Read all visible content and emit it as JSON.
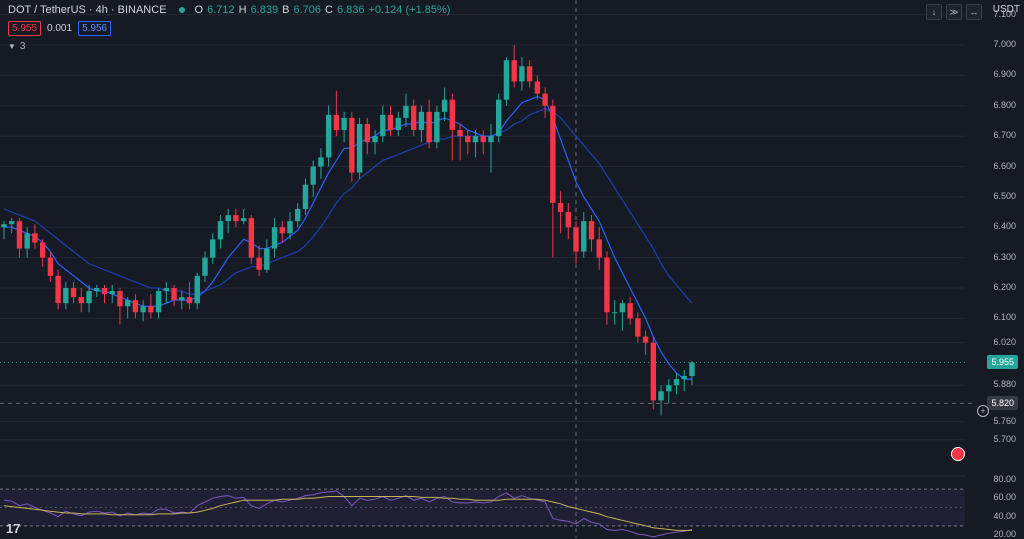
{
  "header": {
    "symbol": "DOT / TetherUS · 4h · BINANCE",
    "o_label": "O",
    "o_value": "6.712",
    "h_label": "H",
    "h_value": "6.839",
    "l_label": "B",
    "l_value": "6.706",
    "c_label": "C",
    "c_value": "6.836",
    "change": "+0.124 (+1.85%)"
  },
  "bid_ask": {
    "bid": "5.955",
    "spread": "0.001",
    "ask": "5.956"
  },
  "indicators_toggle": {
    "count": "3"
  },
  "currency": "USDT",
  "toolbar_icons": [
    "arrow-down-icon",
    "collapse-icon",
    "expand-icon"
  ],
  "price_axis": [
    "7.100",
    "7.000",
    "6.900",
    "6.800",
    "6.700",
    "6.600",
    "6.500",
    "6.400",
    "6.300",
    "6.200",
    "6.100",
    "6.020",
    "5.880",
    "5.760",
    "5.700"
  ],
  "current_price": "5.955",
  "crosshair_price": "5.820",
  "osc_axis": [
    "80.00",
    "60.00",
    "40.00",
    "20.00"
  ],
  "logo_text": "17",
  "colors": {
    "up": "#26a69a",
    "down": "#f23645",
    "ma_fast": "#2962ff",
    "ma_slow": "#1e40af",
    "osc_signal": "#c9b458",
    "osc_line": "#7e57c2"
  },
  "chart_data": {
    "type": "candlestick",
    "candles": [
      [
        6.4,
        6.42,
        6.36,
        6.41
      ],
      [
        6.41,
        6.43,
        6.38,
        6.42
      ],
      [
        6.42,
        6.43,
        6.3,
        6.33
      ],
      [
        6.33,
        6.4,
        6.3,
        6.38
      ],
      [
        6.38,
        6.41,
        6.33,
        6.35
      ],
      [
        6.35,
        6.36,
        6.27,
        6.3
      ],
      [
        6.3,
        6.32,
        6.22,
        6.24
      ],
      [
        6.24,
        6.26,
        6.13,
        6.15
      ],
      [
        6.15,
        6.22,
        6.13,
        6.2
      ],
      [
        6.2,
        6.22,
        6.15,
        6.17
      ],
      [
        6.17,
        6.2,
        6.12,
        6.15
      ],
      [
        6.15,
        6.21,
        6.12,
        6.19
      ],
      [
        6.19,
        6.21,
        6.17,
        6.2
      ],
      [
        6.2,
        6.21,
        6.15,
        6.18
      ],
      [
        6.18,
        6.21,
        6.15,
        6.19
      ],
      [
        6.19,
        6.2,
        6.08,
        6.14
      ],
      [
        6.14,
        6.17,
        6.1,
        6.16
      ],
      [
        6.16,
        6.18,
        6.1,
        6.12
      ],
      [
        6.12,
        6.16,
        6.09,
        6.14
      ],
      [
        6.14,
        6.18,
        6.1,
        6.12
      ],
      [
        6.12,
        6.2,
        6.1,
        6.19
      ],
      [
        6.19,
        6.22,
        6.15,
        6.2
      ],
      [
        6.2,
        6.21,
        6.14,
        6.16
      ],
      [
        6.16,
        6.19,
        6.13,
        6.17
      ],
      [
        6.17,
        6.22,
        6.13,
        6.15
      ],
      [
        6.15,
        6.25,
        6.13,
        6.24
      ],
      [
        6.24,
        6.32,
        6.22,
        6.3
      ],
      [
        6.3,
        6.38,
        6.28,
        6.36
      ],
      [
        6.36,
        6.44,
        6.33,
        6.42
      ],
      [
        6.42,
        6.46,
        6.38,
        6.44
      ],
      [
        6.44,
        6.46,
        6.4,
        6.42
      ],
      [
        6.42,
        6.46,
        6.41,
        6.43
      ],
      [
        6.43,
        6.44,
        6.28,
        6.3
      ],
      [
        6.3,
        6.34,
        6.24,
        6.26
      ],
      [
        6.26,
        6.36,
        6.25,
        6.33
      ],
      [
        6.33,
        6.43,
        6.3,
        6.4
      ],
      [
        6.4,
        6.42,
        6.35,
        6.38
      ],
      [
        6.38,
        6.45,
        6.36,
        6.42
      ],
      [
        6.42,
        6.48,
        6.4,
        6.46
      ],
      [
        6.46,
        6.56,
        6.44,
        6.54
      ],
      [
        6.54,
        6.62,
        6.5,
        6.6
      ],
      [
        6.6,
        6.66,
        6.56,
        6.63
      ],
      [
        6.63,
        6.8,
        6.6,
        6.77
      ],
      [
        6.77,
        6.85,
        6.7,
        6.72
      ],
      [
        6.72,
        6.78,
        6.68,
        6.76
      ],
      [
        6.76,
        6.78,
        6.55,
        6.58
      ],
      [
        6.58,
        6.76,
        6.56,
        6.74
      ],
      [
        6.74,
        6.76,
        6.64,
        6.68
      ],
      [
        6.68,
        6.72,
        6.64,
        6.7
      ],
      [
        6.7,
        6.8,
        6.68,
        6.77
      ],
      [
        6.77,
        6.8,
        6.7,
        6.72
      ],
      [
        6.72,
        6.78,
        6.7,
        6.76
      ],
      [
        6.76,
        6.84,
        6.73,
        6.8
      ],
      [
        6.8,
        6.82,
        6.7,
        6.72
      ],
      [
        6.72,
        6.8,
        6.68,
        6.78
      ],
      [
        6.78,
        6.82,
        6.66,
        6.68
      ],
      [
        6.68,
        6.8,
        6.66,
        6.78
      ],
      [
        6.78,
        6.86,
        6.75,
        6.82
      ],
      [
        6.82,
        6.84,
        6.62,
        6.72
      ],
      [
        6.72,
        6.74,
        6.62,
        6.7
      ],
      [
        6.7,
        6.72,
        6.64,
        6.68
      ],
      [
        6.68,
        6.72,
        6.63,
        6.7
      ],
      [
        6.7,
        6.72,
        6.64,
        6.68
      ],
      [
        6.68,
        6.74,
        6.58,
        6.7
      ],
      [
        6.7,
        6.84,
        6.68,
        6.82
      ],
      [
        6.82,
        6.96,
        6.8,
        6.95
      ],
      [
        6.95,
        7.0,
        6.86,
        6.88
      ],
      [
        6.88,
        6.96,
        6.85,
        6.93
      ],
      [
        6.93,
        6.95,
        6.86,
        6.88
      ],
      [
        6.88,
        6.9,
        6.82,
        6.84
      ],
      [
        6.84,
        6.86,
        6.76,
        6.8
      ],
      [
        6.8,
        6.82,
        6.3,
        6.48
      ],
      [
        6.48,
        6.52,
        6.38,
        6.45
      ],
      [
        6.45,
        6.48,
        6.36,
        6.4
      ],
      [
        6.4,
        6.42,
        6.28,
        6.32
      ],
      [
        6.32,
        6.45,
        6.3,
        6.42
      ],
      [
        6.42,
        6.44,
        6.32,
        6.36
      ],
      [
        6.36,
        6.4,
        6.26,
        6.3
      ],
      [
        6.3,
        6.32,
        6.08,
        6.12
      ],
      [
        6.12,
        6.16,
        6.08,
        6.12
      ],
      [
        6.12,
        6.16,
        6.06,
        6.15
      ],
      [
        6.15,
        6.17,
        6.08,
        6.1
      ],
      [
        6.1,
        6.12,
        6.02,
        6.04
      ],
      [
        6.04,
        6.06,
        5.98,
        6.02
      ],
      [
        6.02,
        6.04,
        5.8,
        5.83
      ],
      [
        5.83,
        5.88,
        5.78,
        5.86
      ],
      [
        5.86,
        5.9,
        5.82,
        5.88
      ],
      [
        5.88,
        5.92,
        5.85,
        5.9
      ],
      [
        5.9,
        5.93,
        5.86,
        5.91
      ],
      [
        5.91,
        5.96,
        5.88,
        5.955
      ]
    ],
    "ma_fast": [
      6.4,
      6.4,
      6.39,
      6.38,
      6.37,
      6.35,
      6.32,
      6.28,
      6.26,
      6.24,
      6.22,
      6.2,
      6.19,
      6.19,
      6.18,
      6.17,
      6.16,
      6.15,
      6.14,
      6.14,
      6.14,
      6.15,
      6.16,
      6.16,
      6.16,
      6.17,
      6.19,
      6.22,
      6.26,
      6.3,
      6.33,
      6.36,
      6.35,
      6.33,
      6.33,
      6.34,
      6.35,
      6.37,
      6.39,
      6.43,
      6.48,
      6.53,
      6.58,
      6.62,
      6.66,
      6.66,
      6.68,
      6.69,
      6.7,
      6.72,
      6.72,
      6.73,
      6.74,
      6.74,
      6.75,
      6.74,
      6.75,
      6.76,
      6.75,
      6.74,
      6.72,
      6.71,
      6.7,
      6.7,
      6.71,
      6.75,
      6.78,
      6.81,
      6.82,
      6.83,
      6.82,
      6.76,
      6.69,
      6.62,
      6.55,
      6.5,
      6.46,
      6.42,
      6.36,
      6.3,
      6.25,
      6.2,
      6.15,
      6.1,
      6.04,
      5.99,
      5.95,
      5.92,
      5.9,
      5.9
    ],
    "ma_slow": [
      6.46,
      6.45,
      6.44,
      6.43,
      6.42,
      6.4,
      6.38,
      6.36,
      6.34,
      6.32,
      6.3,
      6.28,
      6.27,
      6.26,
      6.25,
      6.24,
      6.23,
      6.22,
      6.21,
      6.2,
      6.2,
      6.19,
      6.19,
      6.19,
      6.18,
      6.18,
      6.19,
      6.2,
      6.21,
      6.23,
      6.25,
      6.26,
      6.27,
      6.27,
      6.28,
      6.29,
      6.3,
      6.31,
      6.32,
      6.34,
      6.37,
      6.4,
      6.44,
      6.48,
      6.51,
      6.53,
      6.56,
      6.58,
      6.6,
      6.62,
      6.63,
      6.64,
      6.65,
      6.66,
      6.67,
      6.68,
      6.69,
      6.69,
      6.7,
      6.7,
      6.7,
      6.7,
      6.7,
      6.7,
      6.71,
      6.72,
      6.74,
      6.75,
      6.77,
      6.78,
      6.79,
      6.78,
      6.76,
      6.73,
      6.7,
      6.67,
      6.64,
      6.61,
      6.57,
      6.53,
      6.49,
      6.45,
      6.41,
      6.37,
      6.33,
      6.28,
      6.24,
      6.21,
      6.18,
      6.15
    ],
    "oscillator": {
      "range": [
        20,
        80
      ],
      "bands": [
        30,
        50,
        70
      ],
      "line": [
        58,
        57,
        52,
        54,
        50,
        47,
        44,
        40,
        46,
        43,
        41,
        45,
        46,
        44,
        45,
        41,
        44,
        42,
        44,
        43,
        48,
        48,
        44,
        45,
        44,
        52,
        56,
        60,
        62,
        63,
        60,
        61,
        52,
        49,
        54,
        58,
        56,
        58,
        60,
        63,
        64,
        66,
        67,
        68,
        62,
        52,
        60,
        58,
        59,
        62,
        58,
        60,
        63,
        58,
        60,
        56,
        60,
        62,
        56,
        55,
        55,
        56,
        55,
        56,
        62,
        66,
        60,
        63,
        60,
        58,
        56,
        38,
        36,
        35,
        32,
        38,
        34,
        32,
        26,
        25,
        26,
        24,
        21,
        20,
        18,
        20,
        22,
        23,
        24,
        26
      ],
      "signal": [
        52,
        51,
        50,
        49,
        48,
        47,
        46,
        45,
        44,
        44,
        43,
        43,
        43,
        43,
        42,
        42,
        42,
        42,
        42,
        42,
        43,
        43,
        43,
        44,
        44,
        45,
        47,
        49,
        52,
        54,
        56,
        58,
        58,
        58,
        58,
        58,
        59,
        59,
        59,
        60,
        60,
        61,
        62,
        62,
        62,
        62,
        62,
        62,
        62,
        62,
        62,
        62,
        62,
        62,
        61,
        61,
        61,
        60,
        60,
        59,
        59,
        58,
        58,
        58,
        58,
        59,
        59,
        59,
        59,
        59,
        58,
        56,
        54,
        51,
        49,
        47,
        45,
        43,
        40,
        38,
        36,
        34,
        32,
        30,
        28,
        27,
        26,
        25,
        25,
        25
      ]
    }
  }
}
